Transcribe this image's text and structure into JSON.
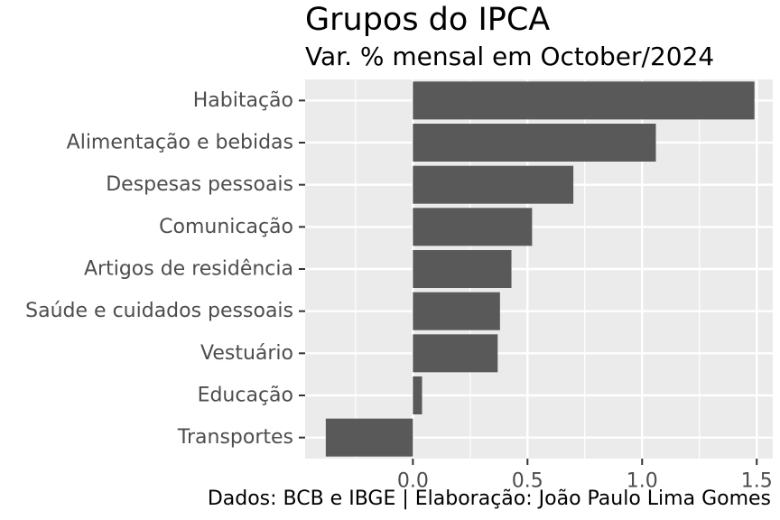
{
  "chart_data": {
    "type": "bar",
    "orientation": "horizontal",
    "title": "Grupos do IPCA",
    "subtitle": "Var. % mensal em October/2024",
    "caption": "Dados: BCB e IBGE | Elaboração: João Paulo Lima Gomes",
    "categories": [
      "Habitação",
      "Alimentação e bebidas",
      "Despesas pessoais",
      "Comunicação",
      "Artigos de residência",
      "Saúde e cuidados pessoais",
      "Vestuário",
      "Educação",
      "Transportes"
    ],
    "values": [
      1.49,
      1.06,
      0.7,
      0.52,
      0.43,
      0.38,
      0.37,
      0.04,
      -0.38
    ],
    "xlim": [
      -0.47,
      1.57
    ],
    "xticks": [
      0.0,
      0.5,
      1.0,
      1.5
    ],
    "xtick_labels": [
      "0.0",
      "0.5",
      "1.0",
      "1.5"
    ],
    "grid": true,
    "bar_color": "#595959",
    "panel_color": "#EBEBEB",
    "grid_color": "#FFFFFF"
  }
}
